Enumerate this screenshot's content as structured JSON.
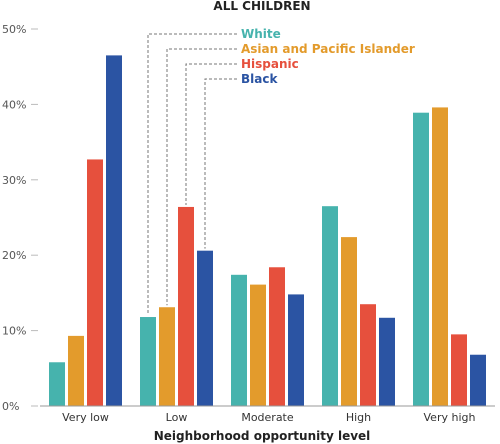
{
  "chart_data": {
    "type": "bar",
    "title": "ALL CHILDREN",
    "xlabel": "Neighborhood opportunity level",
    "ylabel": "",
    "ylim": [
      0,
      50
    ],
    "yticks": [
      "0%",
      "10%",
      "20%",
      "30%",
      "40%",
      "50%"
    ],
    "categories": [
      "Very low",
      "Low",
      "Moderate",
      "High",
      "Very high"
    ],
    "series": [
      {
        "name": "White",
        "color": "#46b3ad",
        "values": [
          5.8,
          11.8,
          17.4,
          26.5,
          38.9
        ]
      },
      {
        "name": "Asian and Pacific Islander",
        "color": "#e39b2c",
        "values": [
          9.3,
          13.1,
          16.1,
          22.4,
          39.6
        ]
      },
      {
        "name": "Hispanic",
        "color": "#e6503d",
        "values": [
          32.7,
          26.4,
          18.4,
          13.5,
          9.5
        ]
      },
      {
        "name": "Black",
        "color": "#2b54a3",
        "values": [
          46.5,
          20.6,
          14.8,
          11.7,
          6.8
        ]
      }
    ],
    "legend_placement": "top-center, with dashed leader lines to the Low group bars",
    "grid": false
  }
}
